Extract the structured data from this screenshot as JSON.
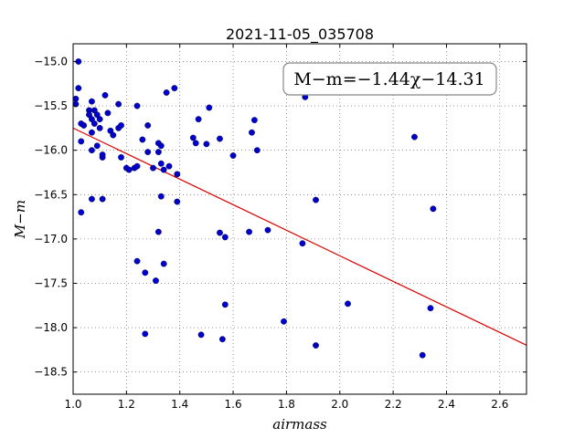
{
  "chart_data": {
    "type": "scatter",
    "title": "2021-11-05_035708",
    "xlabel": "airmass",
    "ylabel": "M−m",
    "xlim": [
      1.0,
      2.7
    ],
    "ylim": [
      -18.75,
      -14.8
    ],
    "y_inverted": true,
    "grid": true,
    "xticks": [
      "1.0",
      "1.2",
      "1.4",
      "1.6",
      "1.8",
      "2.0",
      "2.2",
      "2.4",
      "2.6"
    ],
    "xtick_values": [
      1.0,
      1.2,
      1.4,
      1.6,
      1.8,
      2.0,
      2.2,
      2.4,
      2.6
    ],
    "yticks": [
      "−15.0",
      "−15.5",
      "−16.0",
      "−16.5",
      "−17.0",
      "−17.5",
      "−18.0",
      "−18.5"
    ],
    "ytick_values": [
      -15.0,
      -15.5,
      -16.0,
      -16.5,
      -17.0,
      -17.5,
      -18.0,
      -18.5
    ],
    "annotation": "M−m=−1.44χ−14.31",
    "annotation_position": "top-right",
    "fit": {
      "slope": -1.44,
      "intercept": -14.31,
      "x_range": [
        1.0,
        2.7
      ]
    },
    "colors": {
      "points": "#0000cc",
      "fit_line": "#dd0000"
    },
    "series": [
      {
        "x": [
          1.01,
          1.01,
          1.02,
          1.02,
          1.03,
          1.03,
          1.04,
          1.06,
          1.06,
          1.07,
          1.07,
          1.07,
          1.07,
          1.08,
          1.08,
          1.09,
          1.09,
          1.1,
          1.1,
          1.11,
          1.11,
          1.12,
          1.13,
          1.14,
          1.15,
          1.17,
          1.17,
          1.18,
          1.18,
          1.2,
          1.21,
          1.23,
          1.24,
          1.24,
          1.26,
          1.28,
          1.28,
          1.3,
          1.32,
          1.32,
          1.33,
          1.33,
          1.33,
          1.34,
          1.35,
          1.36,
          1.38,
          1.39,
          1.39,
          1.45,
          1.46,
          1.47,
          1.5,
          1.51,
          1.55,
          1.6,
          1.67,
          1.68,
          1.69,
          1.87,
          1.91,
          2.28,
          1.07,
          1.11,
          1.03,
          1.32,
          1.24,
          1.27,
          1.34,
          1.31,
          1.27,
          1.55,
          1.57,
          1.66,
          1.73,
          1.86,
          1.57,
          1.48,
          1.56,
          1.79,
          1.91,
          2.03,
          2.31,
          2.34,
          2.35
        ],
        "y": [
          -15.42,
          -15.48,
          -15.0,
          -15.3,
          -15.9,
          -15.7,
          -15.72,
          -15.55,
          -15.6,
          -15.45,
          -15.65,
          -15.8,
          -16.0,
          -15.55,
          -15.7,
          -15.6,
          -15.95,
          -15.65,
          -15.75,
          -16.08,
          -16.05,
          -15.38,
          -15.58,
          -15.78,
          -15.83,
          -15.48,
          -15.75,
          -15.72,
          -16.08,
          -16.2,
          -16.22,
          -16.2,
          -15.5,
          -16.18,
          -15.88,
          -15.72,
          -16.02,
          -16.2,
          -15.92,
          -16.02,
          -16.15,
          -15.95,
          -16.52,
          -16.22,
          -15.35,
          -16.18,
          -15.3,
          -16.58,
          -16.27,
          -15.86,
          -15.92,
          -15.65,
          -15.93,
          -15.52,
          -15.87,
          -16.06,
          -15.8,
          -15.66,
          -16.0,
          -15.4,
          -16.56,
          -15.85,
          -16.55,
          -16.55,
          -16.7,
          -16.92,
          -17.25,
          -17.38,
          -17.28,
          -17.47,
          -18.07,
          -16.93,
          -16.98,
          -16.92,
          -16.9,
          -17.05,
          -17.74,
          -18.08,
          -18.13,
          -17.93,
          -18.2,
          -17.73,
          -18.31,
          -17.78,
          -16.66
        ]
      }
    ]
  }
}
